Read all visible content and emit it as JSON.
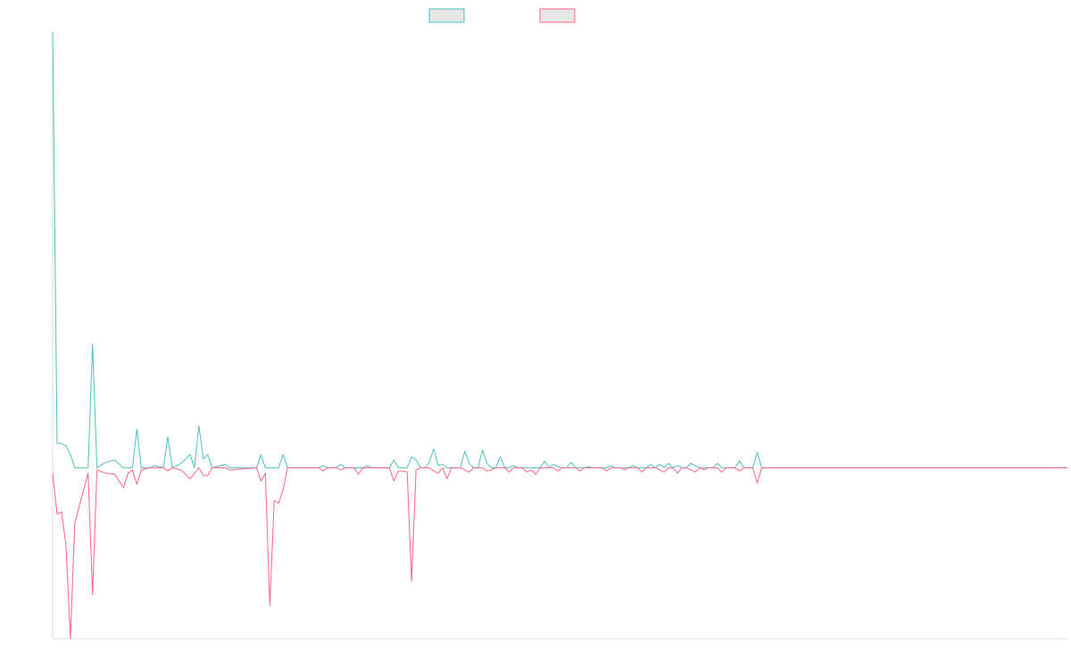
{
  "chart_data": {
    "type": "line",
    "title": "",
    "xlabel": "",
    "ylabel": "",
    "ylim": [
      -155,
      395
    ],
    "legend": "top-center",
    "grid": false,
    "x_count": 230,
    "series": [
      {
        "color": "#4bc0c0",
        "fill": "#e6e6e6",
        "points": [
          [
            0,
            395
          ],
          [
            1,
            22
          ],
          [
            2,
            22
          ],
          [
            3,
            20
          ],
          [
            4,
            12
          ],
          [
            5,
            0
          ],
          [
            8,
            0
          ],
          [
            9,
            112
          ],
          [
            10,
            0
          ],
          [
            12,
            5
          ],
          [
            14,
            7
          ],
          [
            16,
            0
          ],
          [
            18,
            0
          ],
          [
            19,
            35
          ],
          [
            20,
            0
          ],
          [
            22,
            0
          ],
          [
            23,
            2
          ],
          [
            25,
            0
          ],
          [
            26,
            28
          ],
          [
            27,
            0
          ],
          [
            29,
            4
          ],
          [
            31,
            12
          ],
          [
            32,
            0
          ],
          [
            33,
            38
          ],
          [
            34,
            8
          ],
          [
            35,
            12
          ],
          [
            36,
            0
          ],
          [
            38,
            2
          ],
          [
            39,
            3
          ],
          [
            40,
            0
          ],
          [
            46,
            0
          ],
          [
            47,
            12
          ],
          [
            48,
            0
          ],
          [
            51,
            0
          ],
          [
            52,
            12
          ],
          [
            53,
            0
          ],
          [
            60,
            0
          ],
          [
            61,
            2
          ],
          [
            62,
            0
          ],
          [
            64,
            0
          ],
          [
            65,
            3
          ],
          [
            66,
            0
          ],
          [
            70,
            0
          ],
          [
            71,
            2
          ],
          [
            72,
            0
          ],
          [
            76,
            0
          ],
          [
            77,
            7
          ],
          [
            78,
            0
          ],
          [
            80,
            0
          ],
          [
            81,
            10
          ],
          [
            82,
            7
          ],
          [
            83,
            0
          ],
          [
            84,
            0
          ],
          [
            85,
            5
          ],
          [
            86,
            17
          ],
          [
            87,
            2
          ],
          [
            88,
            3
          ],
          [
            89,
            0
          ],
          [
            92,
            0
          ],
          [
            93,
            15
          ],
          [
            94,
            4
          ],
          [
            95,
            0
          ],
          [
            96,
            0
          ],
          [
            97,
            16
          ],
          [
            98,
            4
          ],
          [
            99,
            0
          ],
          [
            100,
            0
          ],
          [
            101,
            10
          ],
          [
            102,
            0
          ],
          [
            103,
            0
          ],
          [
            104,
            2
          ],
          [
            105,
            0
          ],
          [
            110,
            0
          ],
          [
            111,
            6
          ],
          [
            112,
            0
          ],
          [
            113,
            3
          ],
          [
            114,
            1
          ],
          [
            115,
            0
          ],
          [
            116,
            0
          ],
          [
            117,
            5
          ],
          [
            118,
            0
          ],
          [
            120,
            0
          ],
          [
            121,
            1
          ],
          [
            122,
            0
          ],
          [
            125,
            0
          ],
          [
            126,
            2
          ],
          [
            127,
            0
          ],
          [
            130,
            0
          ],
          [
            131,
            2
          ],
          [
            132,
            0
          ],
          [
            134,
            0
          ],
          [
            135,
            3
          ],
          [
            136,
            0
          ],
          [
            137,
            3
          ],
          [
            138,
            0
          ],
          [
            139,
            4
          ],
          [
            140,
            0
          ],
          [
            141,
            2
          ],
          [
            142,
            0
          ],
          [
            143,
            0
          ],
          [
            144,
            4
          ],
          [
            145,
            2
          ],
          [
            146,
            0
          ],
          [
            149,
            0
          ],
          [
            150,
            4
          ],
          [
            151,
            0
          ],
          [
            154,
            0
          ],
          [
            155,
            6
          ],
          [
            156,
            0
          ],
          [
            158,
            0
          ],
          [
            159,
            14
          ],
          [
            160,
            0
          ],
          [
            300,
            0
          ]
        ]
      },
      {
        "color": "#ff6384",
        "fill": "#e6e6e6",
        "points": [
          [
            0,
            -5
          ],
          [
            1,
            -42
          ],
          [
            2,
            -40
          ],
          [
            3,
            -70
          ],
          [
            4,
            -155
          ],
          [
            5,
            -50
          ],
          [
            8,
            -5
          ],
          [
            9,
            -115
          ],
          [
            10,
            -2
          ],
          [
            12,
            -5
          ],
          [
            14,
            -6
          ],
          [
            16,
            -18
          ],
          [
            17,
            -5
          ],
          [
            18,
            -2
          ],
          [
            19,
            -15
          ],
          [
            20,
            -2
          ],
          [
            22,
            0
          ],
          [
            25,
            0
          ],
          [
            26,
            -3
          ],
          [
            27,
            0
          ],
          [
            29,
            -2
          ],
          [
            31,
            -10
          ],
          [
            32,
            -5
          ],
          [
            33,
            0
          ],
          [
            34,
            -7
          ],
          [
            35,
            -7
          ],
          [
            36,
            0
          ],
          [
            39,
            0
          ],
          [
            40,
            -2
          ],
          [
            46,
            0
          ],
          [
            47,
            -12
          ],
          [
            48,
            -5
          ],
          [
            49,
            -125
          ],
          [
            50,
            -30
          ],
          [
            51,
            -32
          ],
          [
            52,
            -20
          ],
          [
            53,
            0
          ],
          [
            60,
            0
          ],
          [
            61,
            -3
          ],
          [
            62,
            0
          ],
          [
            64,
            0
          ],
          [
            65,
            -2
          ],
          [
            66,
            0
          ],
          [
            68,
            0
          ],
          [
            69,
            -6
          ],
          [
            70,
            0
          ],
          [
            76,
            0
          ],
          [
            77,
            -12
          ],
          [
            78,
            -3
          ],
          [
            79,
            -3
          ],
          [
            80,
            -4
          ],
          [
            81,
            -103
          ],
          [
            82,
            -2
          ],
          [
            83,
            0
          ],
          [
            85,
            0
          ],
          [
            86,
            -3
          ],
          [
            87,
            -5
          ],
          [
            88,
            0
          ],
          [
            89,
            -10
          ],
          [
            90,
            0
          ],
          [
            92,
            0
          ],
          [
            93,
            -2
          ],
          [
            94,
            -4
          ],
          [
            95,
            0
          ],
          [
            97,
            0
          ],
          [
            98,
            -3
          ],
          [
            99,
            -2
          ],
          [
            100,
            0
          ],
          [
            102,
            0
          ],
          [
            103,
            -4
          ],
          [
            104,
            0
          ],
          [
            106,
            0
          ],
          [
            107,
            -4
          ],
          [
            108,
            -2
          ],
          [
            109,
            -6
          ],
          [
            110,
            0
          ],
          [
            113,
            0
          ],
          [
            114,
            -3
          ],
          [
            115,
            0
          ],
          [
            118,
            0
          ],
          [
            119,
            -3
          ],
          [
            120,
            0
          ],
          [
            124,
            0
          ],
          [
            125,
            -3
          ],
          [
            126,
            0
          ],
          [
            128,
            0
          ],
          [
            129,
            -2
          ],
          [
            130,
            0
          ],
          [
            132,
            0
          ],
          [
            133,
            -4
          ],
          [
            134,
            0
          ],
          [
            136,
            0
          ],
          [
            137,
            -2
          ],
          [
            138,
            -4
          ],
          [
            139,
            0
          ],
          [
            140,
            0
          ],
          [
            141,
            -5
          ],
          [
            142,
            0
          ],
          [
            143,
            0
          ],
          [
            144,
            -2
          ],
          [
            145,
            -4
          ],
          [
            146,
            0
          ],
          [
            147,
            -2
          ],
          [
            148,
            0
          ],
          [
            150,
            0
          ],
          [
            151,
            -4
          ],
          [
            152,
            0
          ],
          [
            154,
            0
          ],
          [
            155,
            -3
          ],
          [
            156,
            0
          ],
          [
            158,
            0
          ],
          [
            159,
            -14
          ],
          [
            160,
            0
          ],
          [
            300,
            0
          ]
        ]
      }
    ]
  }
}
